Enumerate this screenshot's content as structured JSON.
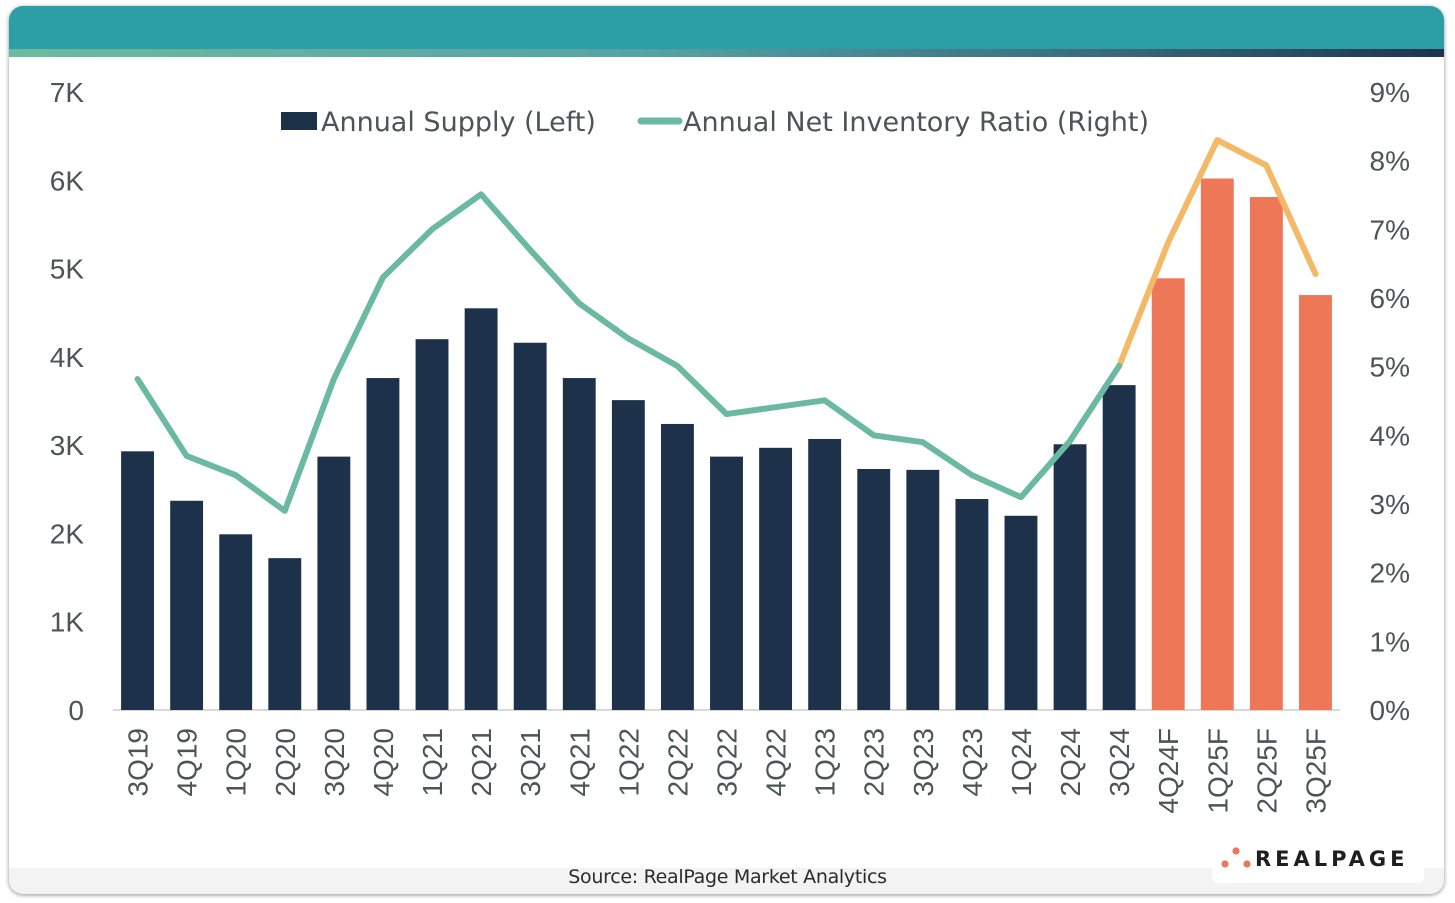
{
  "footer": {
    "source": "Source: RealPage Market Analytics",
    "logo_text": "REALPAGE",
    "logo_icon": "realpage-dots-icon"
  },
  "colors": {
    "header": "#2c9ea5",
    "supply_actual": "#1e314b",
    "supply_forecast": "#ed7757",
    "ratio_actual": "#6bb9a0",
    "ratio_forecast": "#f3b967",
    "axis_text": "#4b5457"
  },
  "chart_data": {
    "type": "bar",
    "title": "",
    "xlabel": "",
    "ylabel": "",
    "categories": [
      "3Q19",
      "4Q19",
      "1Q20",
      "2Q20",
      "3Q20",
      "4Q20",
      "1Q21",
      "2Q21",
      "3Q21",
      "4Q21",
      "1Q22",
      "2Q22",
      "3Q22",
      "4Q22",
      "1Q23",
      "2Q23",
      "3Q23",
      "4Q23",
      "1Q24",
      "2Q24",
      "3Q24",
      "4Q24F",
      "1Q25F",
      "2Q25F",
      "3Q25F"
    ],
    "forecast_start_index": 21,
    "legend_position": "top",
    "grid": false,
    "series": [
      {
        "name": "Annual Supply (Left)",
        "type": "bar",
        "axis": "left",
        "values": [
          2930,
          2370,
          1990,
          1720,
          2870,
          3760,
          4200,
          4550,
          4160,
          3760,
          3510,
          3240,
          2870,
          2970,
          3070,
          2730,
          2720,
          2390,
          2200,
          3010,
          3680,
          4890,
          6020,
          5810,
          4700
        ]
      },
      {
        "name": "Annual Net Inventory Ratio (Right)",
        "type": "line",
        "axis": "right",
        "values": [
          4.82,
          3.7,
          3.42,
          2.9,
          4.82,
          6.3,
          7.0,
          7.51,
          6.7,
          5.92,
          5.41,
          5.01,
          4.31,
          4.41,
          4.51,
          4.0,
          3.9,
          3.42,
          3.1,
          3.92,
          5.01,
          6.81,
          8.3,
          7.93,
          6.35
        ]
      }
    ],
    "y_left": {
      "range": [
        0,
        7000
      ],
      "ticks": [
        0,
        1000,
        2000,
        3000,
        4000,
        5000,
        6000,
        7000
      ],
      "tick_labels": [
        "0",
        "1K",
        "2K",
        "3K",
        "4K",
        "5K",
        "6K",
        "7K"
      ]
    },
    "y_right": {
      "range": [
        0,
        9
      ],
      "ticks": [
        0,
        1,
        2,
        3,
        4,
        5,
        6,
        7,
        8,
        9
      ],
      "tick_labels": [
        "0%",
        "1%",
        "2%",
        "3%",
        "4%",
        "5%",
        "6%",
        "7%",
        "8%",
        "9%"
      ]
    }
  }
}
